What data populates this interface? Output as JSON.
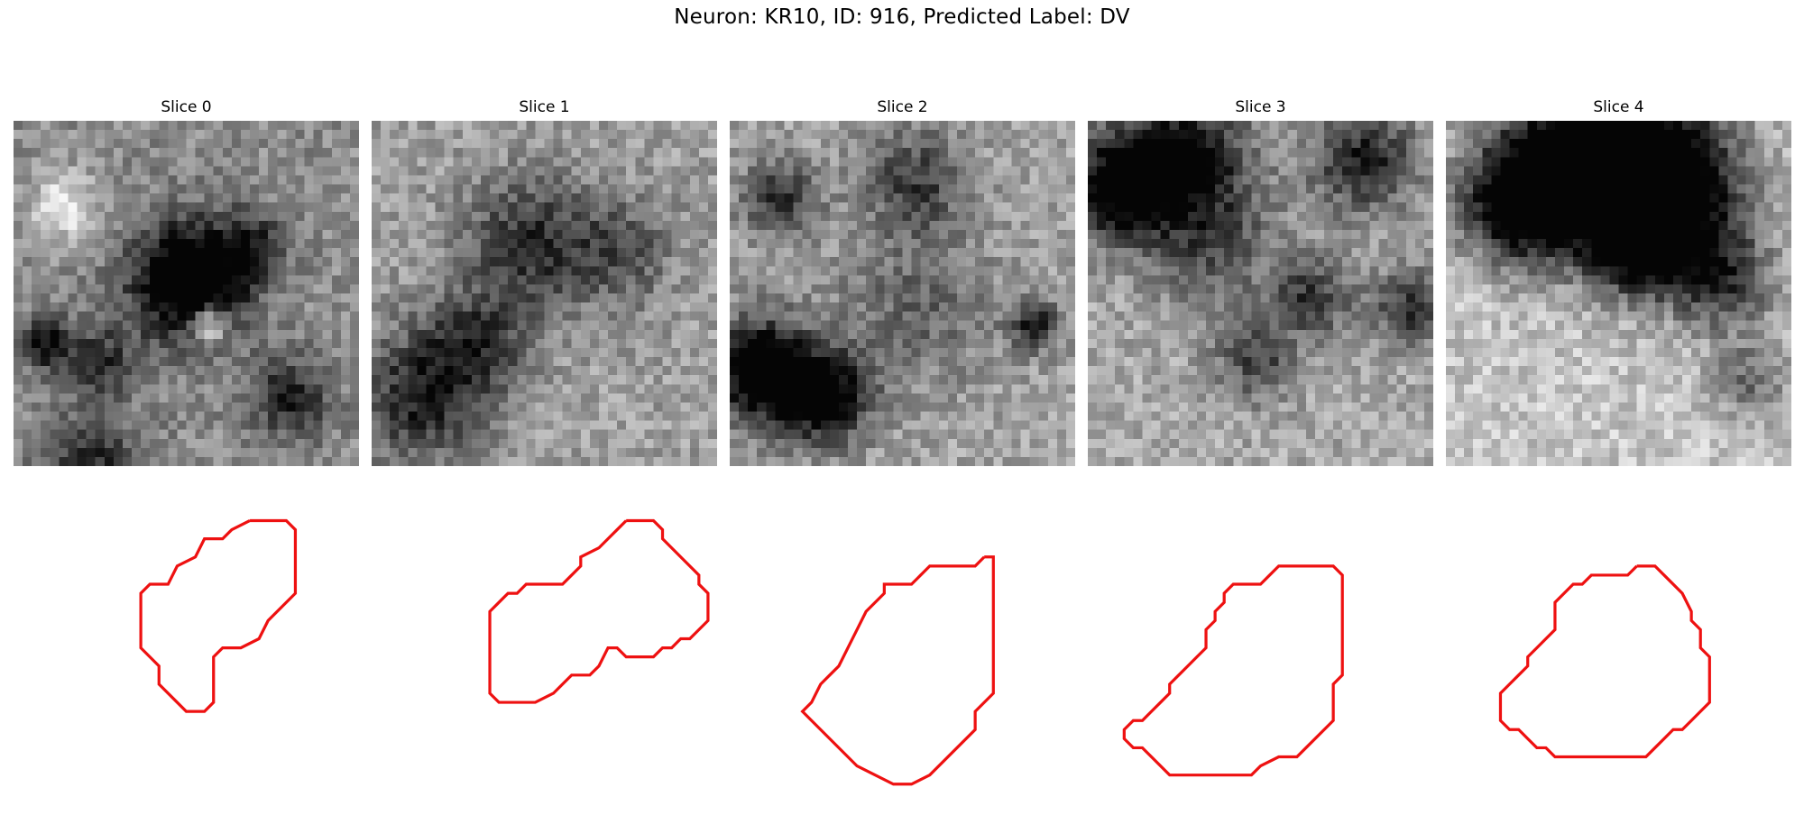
{
  "figure": {
    "title": "Neuron: KR10, ID: 916, Predicted Label: DV"
  },
  "outline_color": "#ee1111",
  "slices": [
    {
      "title": "Slice 0",
      "contour": [
        [
          26,
          6
        ],
        [
          30,
          6
        ],
        [
          31,
          7
        ],
        [
          31,
          14
        ],
        [
          28,
          17
        ],
        [
          27,
          19
        ],
        [
          25,
          20
        ],
        [
          23,
          20
        ],
        [
          22,
          21
        ],
        [
          22,
          26
        ],
        [
          21,
          27
        ],
        [
          19,
          27
        ],
        [
          18,
          26
        ],
        [
          16,
          24
        ],
        [
          16,
          22
        ],
        [
          14,
          20
        ],
        [
          14,
          14
        ],
        [
          15,
          13
        ],
        [
          17,
          13
        ],
        [
          18,
          11
        ],
        [
          20,
          10
        ],
        [
          21,
          8
        ],
        [
          23,
          8
        ],
        [
          24,
          7
        ],
        [
          26,
          6
        ]
      ],
      "dark_spots": [
        [
          19,
          17,
          4.5,
          0.85
        ],
        [
          26,
          13,
          2.5,
          0.35
        ],
        [
          21,
          22,
          1.5,
          -0.6
        ],
        [
          9,
          26,
          3,
          0.35
        ],
        [
          5,
          9,
          2.5,
          -0.4
        ],
        [
          30,
          30,
          3,
          0.45
        ],
        [
          3,
          24,
          2,
          0.5
        ],
        [
          8,
          38,
          4,
          0.4
        ]
      ],
      "base": 0.5
    },
    {
      "title": "Slice 1",
      "contour": [
        [
          28,
          6
        ],
        [
          31,
          6
        ],
        [
          32,
          7
        ],
        [
          32,
          8
        ],
        [
          35,
          11
        ],
        [
          36,
          12
        ],
        [
          36,
          13
        ],
        [
          37,
          14
        ],
        [
          37,
          17
        ],
        [
          35,
          19
        ],
        [
          34,
          19
        ],
        [
          33,
          20
        ],
        [
          32,
          20
        ],
        [
          31,
          21
        ],
        [
          29,
          21
        ],
        [
          28,
          21
        ],
        [
          27,
          20
        ],
        [
          26,
          20
        ],
        [
          25,
          22
        ],
        [
          24,
          23
        ],
        [
          22,
          23
        ],
        [
          21,
          24
        ],
        [
          20,
          25
        ],
        [
          18,
          26
        ],
        [
          14,
          26
        ],
        [
          13,
          25
        ],
        [
          13,
          16
        ],
        [
          14,
          15
        ],
        [
          15,
          14
        ],
        [
          16,
          14
        ],
        [
          17,
          13
        ],
        [
          21,
          13
        ],
        [
          22,
          12
        ],
        [
          23,
          11
        ],
        [
          23,
          10
        ],
        [
          25,
          9
        ],
        [
          26,
          8
        ],
        [
          27,
          7
        ],
        [
          28,
          6
        ]
      ],
      "dark_spots": [
        [
          17,
          13,
          5,
          0.45
        ],
        [
          5,
          30,
          5,
          0.5
        ],
        [
          11,
          24,
          4,
          0.4
        ],
        [
          27,
          14,
          4,
          0.3
        ]
      ],
      "base": 0.42
    },
    {
      "title": "Slice 2",
      "contour": [
        [
          28,
          10
        ],
        [
          29,
          10
        ],
        [
          29,
          25
        ],
        [
          27,
          27
        ],
        [
          27,
          29
        ],
        [
          22,
          34
        ],
        [
          20,
          35
        ],
        [
          18,
          35
        ],
        [
          16,
          34
        ],
        [
          14,
          33
        ],
        [
          9,
          28
        ],
        [
          8,
          27
        ],
        [
          9,
          26
        ],
        [
          10,
          24
        ],
        [
          11,
          23
        ],
        [
          12,
          22
        ],
        [
          13,
          20
        ],
        [
          14,
          18
        ],
        [
          15,
          16
        ],
        [
          17,
          14
        ],
        [
          17,
          13
        ],
        [
          20,
          13
        ],
        [
          21,
          12
        ],
        [
          22,
          11
        ],
        [
          23,
          11
        ],
        [
          27,
          11
        ],
        [
          28,
          10
        ]
      ],
      "dark_spots": [
        [
          3,
          27,
          4,
          0.85
        ],
        [
          10,
          30,
          3.5,
          0.7
        ],
        [
          5,
          8,
          3,
          0.45
        ],
        [
          20,
          6,
          4,
          0.4
        ],
        [
          33,
          22,
          2,
          0.5
        ],
        [
          20,
          20,
          6,
          0.25
        ]
      ],
      "base": 0.4
    },
    {
      "title": "Slice 3",
      "contour": [
        [
          23,
          11
        ],
        [
          27,
          11
        ],
        [
          28,
          12
        ],
        [
          28,
          23
        ],
        [
          27,
          24
        ],
        [
          27,
          28
        ],
        [
          24,
          31
        ],
        [
          23,
          32
        ],
        [
          22,
          32
        ],
        [
          21,
          32
        ],
        [
          19,
          33
        ],
        [
          18,
          34
        ],
        [
          16,
          34
        ],
        [
          11,
          34
        ],
        [
          10,
          34
        ],
        [
          9,
          34
        ],
        [
          7,
          32
        ],
        [
          6,
          31
        ],
        [
          5,
          31
        ],
        [
          4,
          30
        ],
        [
          4,
          29
        ],
        [
          5,
          28
        ],
        [
          6,
          28
        ],
        [
          7,
          27
        ],
        [
          8,
          26
        ],
        [
          9,
          25
        ],
        [
          9,
          24
        ],
        [
          10,
          23
        ],
        [
          11,
          22
        ],
        [
          12,
          21
        ],
        [
          13,
          20
        ],
        [
          13,
          18
        ],
        [
          14,
          17
        ],
        [
          14,
          16
        ],
        [
          15,
          15
        ],
        [
          15,
          14
        ],
        [
          16,
          13
        ],
        [
          19,
          13
        ],
        [
          20,
          12
        ],
        [
          21,
          11
        ],
        [
          23,
          11
        ]
      ],
      "dark_spots": [
        [
          3,
          7,
          4,
          0.75
        ],
        [
          10,
          3,
          5,
          0.65
        ],
        [
          30,
          4,
          4,
          0.55
        ],
        [
          24,
          19,
          3,
          0.45
        ],
        [
          18,
          26,
          3,
          0.4
        ],
        [
          35,
          20,
          3,
          0.45
        ],
        [
          13,
          13,
          5,
          0.35
        ]
      ],
      "base": 0.38
    },
    {
      "title": "Slice 4",
      "contour": [
        [
          21,
          11
        ],
        [
          23,
          11
        ],
        [
          24,
          12
        ],
        [
          26,
          14
        ],
        [
          27,
          16
        ],
        [
          27,
          17
        ],
        [
          28,
          18
        ],
        [
          28,
          20
        ],
        [
          29,
          21
        ],
        [
          29,
          26
        ],
        [
          28,
          27
        ],
        [
          27,
          28
        ],
        [
          26,
          29
        ],
        [
          25,
          29
        ],
        [
          24,
          30
        ],
        [
          23,
          31
        ],
        [
          22,
          32
        ],
        [
          20,
          32
        ],
        [
          16,
          32
        ],
        [
          12,
          32
        ],
        [
          11,
          31
        ],
        [
          10,
          31
        ],
        [
          9,
          30
        ],
        [
          8,
          29
        ],
        [
          7,
          29
        ],
        [
          6,
          28
        ],
        [
          6,
          25
        ],
        [
          7,
          24
        ],
        [
          8,
          23
        ],
        [
          9,
          22
        ],
        [
          9,
          21
        ],
        [
          10,
          20
        ],
        [
          11,
          19
        ],
        [
          12,
          18
        ],
        [
          12,
          15
        ],
        [
          13,
          14
        ],
        [
          14,
          13
        ],
        [
          15,
          13
        ],
        [
          16,
          12
        ],
        [
          17,
          12
        ],
        [
          18,
          12
        ],
        [
          20,
          12
        ],
        [
          21,
          11
        ]
      ],
      "dark_spots": [
        [
          14,
          4,
          7,
          0.95
        ],
        [
          24,
          6,
          6,
          0.9
        ],
        [
          7,
          9,
          4,
          0.7
        ],
        [
          21,
          13,
          4,
          0.7
        ],
        [
          30,
          17,
          4,
          0.55
        ],
        [
          33,
          28,
          3,
          0.35
        ]
      ],
      "base": 0.25
    }
  ]
}
